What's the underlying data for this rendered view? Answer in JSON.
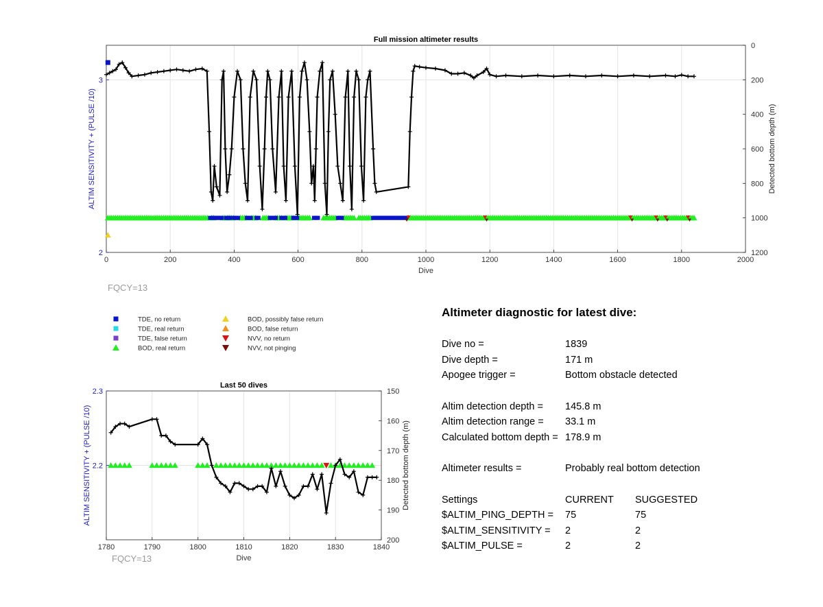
{
  "colors": {
    "axis_left": "#2020c0",
    "tde_no_return": "#0a14c8",
    "tde_real_return": "#27d8e8",
    "tde_false_return": "#7b3fc8",
    "bod_real_return": "#22ee22",
    "bod_possibly_false": "#f0d020",
    "bod_false_return": "#f09020",
    "nvv_no_return": "#dd1111",
    "nvv_not_pinging": "#7a0c0c",
    "fqcy": "#9a9a9a"
  },
  "legend": [
    {
      "label": "TDE, no return",
      "marker": "square",
      "color": "#0a14c8"
    },
    {
      "label": "TDE, real return",
      "marker": "square",
      "color": "#27d8e8"
    },
    {
      "label": "TDE, false return",
      "marker": "square",
      "color": "#7b3fc8"
    },
    {
      "label": "BOD, real return",
      "marker": "triangle-up",
      "color": "#22ee22"
    },
    {
      "label": "BOD, possibly false return",
      "marker": "triangle-up",
      "color": "#f0d020"
    },
    {
      "label": "BOD, false return",
      "marker": "triangle-up",
      "color": "#f09020"
    },
    {
      "label": "NVV, no return",
      "marker": "triangle-down",
      "color": "#dd1111"
    },
    {
      "label": "NVV, not pinging",
      "marker": "triangle-down",
      "color": "#7a0c0c"
    }
  ],
  "chart_data": [
    {
      "type": "line",
      "title": "Full mission altimeter results",
      "xlabel": "Dive",
      "ylabel_left": "ALTIM SENSITIVITY + (PULSE /10)",
      "ylabel_right": "Detected bottom depth (m)",
      "xlim": [
        0,
        2000
      ],
      "ylim_left": [
        2,
        3.2
      ],
      "ylim_right": [
        1200,
        0
      ],
      "xticks": [
        0,
        200,
        400,
        600,
        800,
        1000,
        1200,
        1400,
        1600,
        1800,
        2000
      ],
      "yticks_left": [
        2,
        3
      ],
      "yticks_right": [
        0,
        200,
        400,
        600,
        800,
        1000,
        1200
      ],
      "annotation": "FQCY=13",
      "bottom_depth": {
        "x": [
          0,
          10,
          20,
          30,
          40,
          50,
          60,
          70,
          80,
          100,
          120,
          140,
          160,
          180,
          200,
          220,
          240,
          260,
          280,
          300,
          315,
          322,
          328,
          333,
          338,
          345,
          355,
          362,
          367,
          372,
          378,
          385,
          392,
          400,
          410,
          420,
          428,
          435,
          442,
          450,
          460,
          470,
          480,
          488,
          495,
          500,
          505,
          512,
          520,
          530,
          540,
          548,
          555,
          562,
          570,
          580,
          590,
          598,
          605,
          612,
          620,
          628,
          636,
          642,
          648,
          652,
          656,
          660,
          668,
          676,
          684,
          690,
          695,
          700,
          708,
          716,
          724,
          732,
          740,
          748,
          756,
          762,
          768,
          775,
          782,
          790,
          798,
          805,
          812,
          818,
          825,
          835,
          840,
          845,
          945,
          950,
          955,
          960,
          965,
          980,
          1000,
          1030,
          1060,
          1080,
          1100,
          1120,
          1140,
          1150,
          1160,
          1180,
          1190,
          1200,
          1220,
          1250,
          1300,
          1350,
          1400,
          1450,
          1500,
          1550,
          1600,
          1650,
          1700,
          1750,
          1780,
          1800,
          1820,
          1839
        ],
        "y": [
          170,
          160,
          150,
          140,
          110,
          100,
          130,
          160,
          180,
          175,
          170,
          160,
          155,
          150,
          145,
          140,
          145,
          150,
          140,
          135,
          150,
          500,
          850,
          900,
          700,
          820,
          870,
          200,
          150,
          600,
          850,
          750,
          600,
          300,
          150,
          200,
          600,
          800,
          900,
          300,
          150,
          200,
          700,
          950,
          600,
          300,
          150,
          200,
          600,
          850,
          300,
          150,
          700,
          900,
          300,
          150,
          700,
          980,
          300,
          150,
          100,
          200,
          500,
          800,
          700,
          900,
          600,
          300,
          150,
          100,
          800,
          980,
          500,
          200,
          150,
          400,
          700,
          800,
          900,
          300,
          150,
          700,
          950,
          300,
          150,
          200,
          700,
          900,
          300,
          200,
          150,
          600,
          800,
          850,
          820,
          500,
          300,
          150,
          120,
          125,
          130,
          135,
          145,
          165,
          165,
          160,
          175,
          190,
          175,
          155,
          135,
          170,
          180,
          175,
          180,
          175,
          180,
          175,
          180,
          175,
          180,
          175,
          180,
          175,
          180,
          172,
          180,
          180
        ]
      },
      "tde_no_return_segments": [
        [
          325,
          335
        ],
        [
          338,
          350
        ],
        [
          355,
          362
        ],
        [
          375,
          390
        ],
        [
          400,
          412
        ],
        [
          440,
          455
        ],
        [
          470,
          480
        ],
        [
          512,
          530
        ],
        [
          548,
          560
        ],
        [
          585,
          600
        ],
        [
          650,
          665
        ],
        [
          725,
          740
        ],
        [
          835,
          940
        ]
      ],
      "bod_real_return_segments": [
        [
          5,
          320
        ],
        [
          330,
          340
        ],
        [
          365,
          375
        ],
        [
          380,
          400
        ],
        [
          420,
          440
        ],
        [
          455,
          470
        ],
        [
          490,
          510
        ],
        [
          530,
          550
        ],
        [
          560,
          585
        ],
        [
          600,
          640
        ],
        [
          680,
          720
        ],
        [
          745,
          780
        ],
        [
          790,
          830
        ],
        [
          945,
          1840
        ]
      ],
      "nvv_no_return_x": [
        945,
        1185,
        1640,
        1720,
        1750,
        1820
      ],
      "nvv_not_pinging_x": [
        940,
        1190,
        1645,
        1725,
        1755,
        1825
      ],
      "tde_no_return_marker": {
        "x": 5,
        "y": 3.1
      },
      "bod_possibly_false_marker": {
        "x": 5,
        "y": 2.1
      }
    },
    {
      "type": "line",
      "title": "Last 50 dives",
      "xlabel": "Dive",
      "ylabel_left": "ALTIM SENSITIVITY + (PULSE /10)",
      "ylabel_right": "Detected bottom depth (m)",
      "xlim": [
        1780,
        1840
      ],
      "ylim_left": [
        2.1,
        2.3
      ],
      "ylim_right": [
        200,
        150
      ],
      "xticks": [
        1780,
        1790,
        1800,
        1810,
        1820,
        1830,
        1840
      ],
      "yticks_left": [
        2.2,
        2.3
      ],
      "yticks_right": [
        150,
        160,
        170,
        180,
        190,
        200
      ],
      "annotation": "FQCY=13",
      "bottom_depth": {
        "x": [
          1781,
          1782,
          1783,
          1784,
          1785,
          1790,
          1791,
          1792,
          1793,
          1794,
          1795,
          1800,
          1801,
          1802,
          1803,
          1804,
          1805,
          1806,
          1807,
          1808,
          1809,
          1810,
          1811,
          1812,
          1813,
          1814,
          1815,
          1816,
          1817,
          1818,
          1819,
          1820,
          1821,
          1822,
          1823,
          1824,
          1825,
          1826,
          1827,
          1828,
          1829,
          1830,
          1831,
          1832,
          1833,
          1834,
          1835,
          1836,
          1837,
          1838,
          1839
        ],
        "y": [
          164,
          162,
          161,
          161,
          162,
          159.5,
          159.5,
          165,
          165,
          167,
          168,
          168,
          166,
          168,
          175,
          179,
          181,
          182,
          184,
          181,
          181,
          182,
          183,
          183,
          182,
          182,
          184,
          176,
          182,
          177,
          182,
          185,
          186,
          185,
          182,
          182,
          178,
          183,
          178,
          191,
          181,
          175,
          173,
          178,
          179,
          177,
          184,
          185,
          179,
          179,
          179
        ]
      },
      "bod_real_return_x": [
        1781,
        1782,
        1783,
        1784,
        1785,
        1790,
        1791,
        1792,
        1793,
        1794,
        1795,
        1800,
        1801,
        1802,
        1804,
        1805,
        1806,
        1807,
        1808,
        1809,
        1810,
        1811,
        1812,
        1813,
        1814,
        1815,
        1816,
        1817,
        1818,
        1819,
        1820,
        1821,
        1822,
        1823,
        1824,
        1825,
        1826,
        1827,
        1829,
        1830,
        1831,
        1832,
        1833,
        1834,
        1835,
        1836,
        1837,
        1838
      ],
      "nvv_no_return_x": [
        1828
      ],
      "bod_level": 2.2
    }
  ],
  "diagnostic": {
    "title": "Altimeter diagnostic for latest dive:",
    "dive_no_label": "Dive no =",
    "dive_no_value": "1839",
    "dive_depth_label": "Dive depth =",
    "dive_depth_value": "171 m",
    "apogee_label": "Apogee trigger =",
    "apogee_value": "Bottom obstacle detected",
    "det_depth_label": "Altim detection depth =",
    "det_depth_value": "145.8 m",
    "det_range_label": "Altim detection range =",
    "det_range_value": "33.1 m",
    "calc_depth_label": "Calculated bottom depth =",
    "calc_depth_value": "178.9 m",
    "results_label": "Altimeter results =",
    "results_value": "Probably real bottom detection",
    "settings_label": "Settings",
    "current_label": "CURRENT",
    "suggested_label": "SUGGESTED",
    "ping_label": "$ALTIM_PING_DEPTH =",
    "ping_current": "75",
    "ping_suggested": "75",
    "sens_label": "$ALTIM_SENSITIVITY =",
    "sens_current": "2",
    "sens_suggested": "2",
    "pulse_label": "$ALTIM_PULSE =",
    "pulse_current": "2",
    "pulse_suggested": "2"
  }
}
